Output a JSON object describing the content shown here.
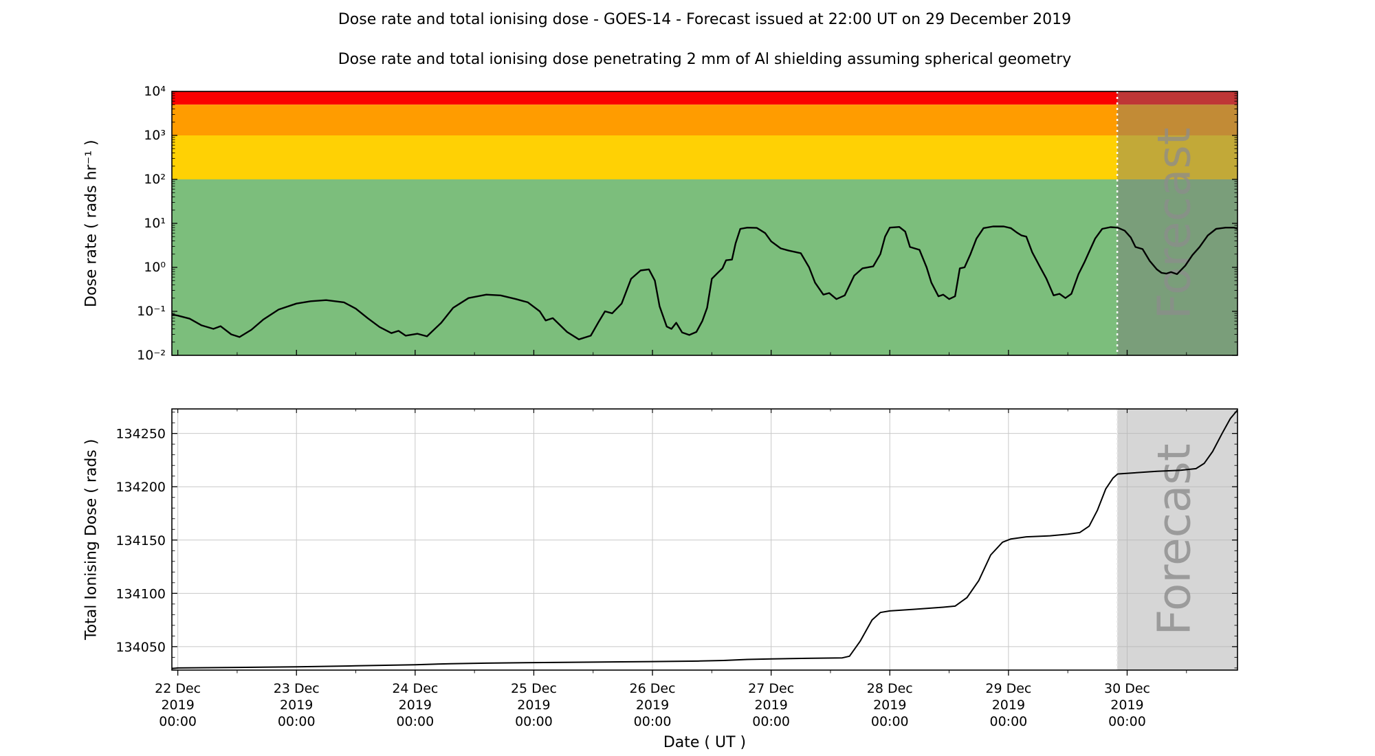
{
  "titles": {
    "main": "Dose rate and total ionising dose - GOES-14 - Forecast issued at 22:00 UT on 29 December 2019",
    "sub": "Dose rate and total ionising dose penetrating 2 mm of Al shielding assuming spherical geometry"
  },
  "forecast_label": "Forecast",
  "x_axis": {
    "label": "Date ( UT )",
    "tick_days": [
      "22 Dec",
      "23 Dec",
      "24 Dec",
      "25 Dec",
      "26 Dec",
      "27 Dec",
      "28 Dec",
      "29 Dec",
      "30 Dec"
    ],
    "tick_year": "2019",
    "tick_time": "00:00"
  },
  "colors": {
    "band_red": "#fa0000",
    "band_orange": "#ff9c00",
    "band_yellow": "#ffd104",
    "band_green": "#7cbe7c",
    "forecast_overlay_top": "rgba(120,120,120,0.45)",
    "forecast_overlay_bottom": "rgba(180,180,180,0.55)",
    "watermark": "#8c8c8c",
    "grid": "#c8c8c8",
    "line": "#000000",
    "forecast_divider_top": "#ffffff",
    "forecast_divider_bottom": "#e8e8e8"
  },
  "chart_data": [
    {
      "name": "dose_rate",
      "type": "line",
      "title": "Dose rate and total ionising dose - GOES-14",
      "ylabel": "Dose rate ( rads hr⁻¹ )",
      "y_scale": "log",
      "ylim": [
        0.01,
        10000
      ],
      "ytick_labels": [
        "10⁴",
        "10³",
        "10²",
        "10¹",
        "10⁰",
        "10⁻¹",
        "10⁻²"
      ],
      "ytick_values": [
        10000,
        1000,
        100,
        10,
        1,
        0.1,
        0.01
      ],
      "x_days_from_22dec": [
        -0.05,
        8.93
      ],
      "forecast_start_day": 7.9167,
      "grid": false,
      "bands": [
        {
          "label": "red-alert-band",
          "ymin": 5000,
          "ymax": 10000,
          "color": "#fa0000"
        },
        {
          "label": "orange-alert-band",
          "ymin": 1000,
          "ymax": 5000,
          "color": "#ff9c00"
        },
        {
          "label": "yellow-alert-band",
          "ymin": 100,
          "ymax": 1000,
          "color": "#ffd104"
        },
        {
          "label": "green-nominal-band",
          "ymin": 0.01,
          "ymax": 100,
          "color": "#7cbe7c"
        }
      ],
      "series": [
        {
          "name": "Dose rate",
          "color": "#000000",
          "points": [
            [
              -0.05,
              0.085
            ],
            [
              0,
              0.08
            ],
            [
              0.1,
              0.068
            ],
            [
              0.2,
              0.048
            ],
            [
              0.3,
              0.04
            ],
            [
              0.36,
              0.046
            ],
            [
              0.45,
              0.03
            ],
            [
              0.52,
              0.026
            ],
            [
              0.62,
              0.038
            ],
            [
              0.72,
              0.065
            ],
            [
              0.85,
              0.11
            ],
            [
              1.0,
              0.15
            ],
            [
              1.12,
              0.17
            ],
            [
              1.25,
              0.18
            ],
            [
              1.4,
              0.16
            ],
            [
              1.5,
              0.115
            ],
            [
              1.6,
              0.07
            ],
            [
              1.7,
              0.044
            ],
            [
              1.8,
              0.032
            ],
            [
              1.86,
              0.036
            ],
            [
              1.92,
              0.028
            ],
            [
              2.02,
              0.031
            ],
            [
              2.1,
              0.027
            ],
            [
              2.22,
              0.055
            ],
            [
              2.32,
              0.12
            ],
            [
              2.45,
              0.2
            ],
            [
              2.6,
              0.24
            ],
            [
              2.72,
              0.23
            ],
            [
              2.85,
              0.19
            ],
            [
              2.95,
              0.16
            ],
            [
              3.05,
              0.1
            ],
            [
              3.1,
              0.062
            ],
            [
              3.16,
              0.07
            ],
            [
              3.28,
              0.034
            ],
            [
              3.38,
              0.023
            ],
            [
              3.48,
              0.028
            ],
            [
              3.55,
              0.06
            ],
            [
              3.6,
              0.1
            ],
            [
              3.66,
              0.09
            ],
            [
              3.74,
              0.15
            ],
            [
              3.82,
              0.55
            ],
            [
              3.9,
              0.85
            ],
            [
              3.97,
              0.9
            ],
            [
              4.02,
              0.5
            ],
            [
              4.06,
              0.13
            ],
            [
              4.12,
              0.045
            ],
            [
              4.16,
              0.04
            ],
            [
              4.2,
              0.055
            ],
            [
              4.25,
              0.033
            ],
            [
              4.31,
              0.029
            ],
            [
              4.37,
              0.034
            ],
            [
              4.42,
              0.06
            ],
            [
              4.46,
              0.12
            ],
            [
              4.5,
              0.55
            ],
            [
              4.55,
              0.75
            ],
            [
              4.59,
              0.95
            ],
            [
              4.62,
              1.45
            ],
            [
              4.67,
              1.5
            ],
            [
              4.7,
              3.5
            ],
            [
              4.74,
              7.5
            ],
            [
              4.8,
              8.0
            ],
            [
              4.88,
              7.9
            ],
            [
              4.95,
              6.0
            ],
            [
              5.0,
              3.9
            ],
            [
              5.08,
              2.7
            ],
            [
              5.15,
              2.4
            ],
            [
              5.25,
              2.1
            ],
            [
              5.32,
              1.0
            ],
            [
              5.37,
              0.45
            ],
            [
              5.44,
              0.24
            ],
            [
              5.49,
              0.26
            ],
            [
              5.55,
              0.19
            ],
            [
              5.62,
              0.23
            ],
            [
              5.7,
              0.65
            ],
            [
              5.77,
              0.95
            ],
            [
              5.86,
              1.05
            ],
            [
              5.92,
              2.0
            ],
            [
              5.96,
              5.0
            ],
            [
              6.0,
              8.0
            ],
            [
              6.08,
              8.3
            ],
            [
              6.13,
              6.5
            ],
            [
              6.17,
              2.9
            ],
            [
              6.25,
              2.5
            ],
            [
              6.31,
              1.0
            ],
            [
              6.35,
              0.45
            ],
            [
              6.41,
              0.22
            ],
            [
              6.45,
              0.24
            ],
            [
              6.5,
              0.19
            ],
            [
              6.55,
              0.22
            ],
            [
              6.59,
              0.95
            ],
            [
              6.63,
              1.0
            ],
            [
              6.68,
              2.0
            ],
            [
              6.73,
              4.5
            ],
            [
              6.79,
              7.8
            ],
            [
              6.87,
              8.5
            ],
            [
              6.96,
              8.5
            ],
            [
              7.02,
              7.8
            ],
            [
              7.07,
              6.2
            ],
            [
              7.11,
              5.3
            ],
            [
              7.15,
              5.0
            ],
            [
              7.2,
              2.2
            ],
            [
              7.26,
              1.1
            ],
            [
              7.32,
              0.55
            ],
            [
              7.38,
              0.23
            ],
            [
              7.43,
              0.25
            ],
            [
              7.48,
              0.2
            ],
            [
              7.53,
              0.25
            ],
            [
              7.59,
              0.7
            ],
            [
              7.64,
              1.3
            ],
            [
              7.69,
              2.6
            ],
            [
              7.73,
              4.5
            ],
            [
              7.79,
              7.5
            ],
            [
              7.86,
              8.2
            ],
            [
              7.92,
              8.0
            ],
            [
              7.98,
              6.8
            ],
            [
              8.03,
              4.8
            ],
            [
              8.07,
              2.9
            ],
            [
              8.13,
              2.6
            ],
            [
              8.19,
              1.4
            ],
            [
              8.25,
              0.9
            ],
            [
              8.29,
              0.75
            ],
            [
              8.33,
              0.72
            ],
            [
              8.37,
              0.78
            ],
            [
              8.42,
              0.7
            ],
            [
              8.49,
              1.1
            ],
            [
              8.55,
              1.9
            ],
            [
              8.61,
              2.9
            ],
            [
              8.68,
              5.3
            ],
            [
              8.75,
              7.5
            ],
            [
              8.83,
              8.0
            ],
            [
              8.9,
              8.0
            ],
            [
              8.93,
              7.6
            ]
          ]
        }
      ]
    },
    {
      "name": "total_ionising_dose",
      "type": "line",
      "ylabel": "Total Ionising Dose ( rads )",
      "y_scale": "linear",
      "ylim": [
        134028,
        134273
      ],
      "ytick_values": [
        134050,
        134100,
        134150,
        134200,
        134250
      ],
      "x_days_from_22dec": [
        -0.05,
        8.93
      ],
      "forecast_start_day": 7.9167,
      "grid": true,
      "series": [
        {
          "name": "Total Ionising Dose",
          "color": "#000000",
          "points": [
            [
              -0.05,
              134029.5
            ],
            [
              0,
              134030
            ],
            [
              0.5,
              134030.5
            ],
            [
              1.0,
              134031
            ],
            [
              1.5,
              134032
            ],
            [
              2.0,
              134033
            ],
            [
              2.3,
              134034
            ],
            [
              2.6,
              134034.5
            ],
            [
              3.0,
              134035
            ],
            [
              3.5,
              134035.5
            ],
            [
              4.0,
              134036
            ],
            [
              4.4,
              134036.5
            ],
            [
              4.6,
              134037
            ],
            [
              4.8,
              134038
            ],
            [
              5.0,
              134038.5
            ],
            [
              5.3,
              134039
            ],
            [
              5.6,
              134039.5
            ],
            [
              5.66,
              134041
            ],
            [
              5.75,
              134055
            ],
            [
              5.85,
              134075
            ],
            [
              5.92,
              134082
            ],
            [
              6.0,
              134083.5
            ],
            [
              6.2,
              134085
            ],
            [
              6.45,
              134087
            ],
            [
              6.55,
              134088
            ],
            [
              6.65,
              134096
            ],
            [
              6.75,
              134112
            ],
            [
              6.85,
              134136
            ],
            [
              6.95,
              134148
            ],
            [
              7.02,
              134151
            ],
            [
              7.15,
              134153
            ],
            [
              7.35,
              134154
            ],
            [
              7.5,
              134155.5
            ],
            [
              7.6,
              134157
            ],
            [
              7.68,
              134163
            ],
            [
              7.75,
              134178
            ],
            [
              7.82,
              134198
            ],
            [
              7.88,
              134208
            ],
            [
              7.92,
              134212
            ],
            [
              8.05,
              134213
            ],
            [
              8.25,
              134214.5
            ],
            [
              8.45,
              134215.5
            ],
            [
              8.58,
              134217
            ],
            [
              8.65,
              134222
            ],
            [
              8.72,
              134233
            ],
            [
              8.8,
              134250
            ],
            [
              8.87,
              134264
            ],
            [
              8.93,
              134272
            ]
          ]
        }
      ]
    }
  ]
}
